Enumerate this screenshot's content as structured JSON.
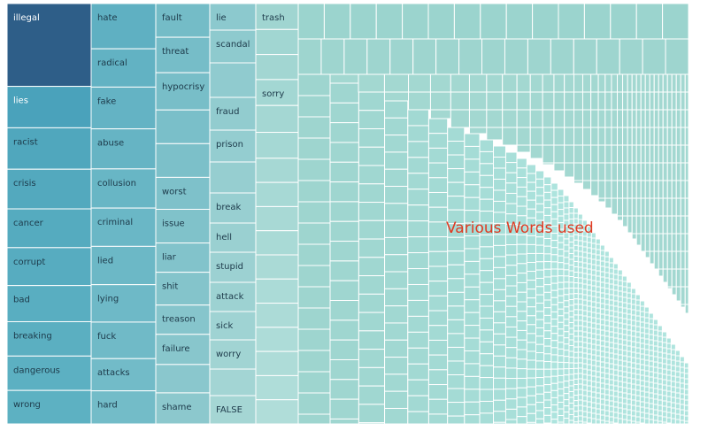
{
  "chart_data": {
    "type": "treemap",
    "title": "",
    "annotation": "Various Words used",
    "columns": [
      {
        "words": [
          {
            "label": "illegal",
            "value": 94,
            "color": "#2e5e88",
            "text": "#ffffff"
          },
          {
            "label": "lies",
            "value": 47,
            "color": "#4aa2bb",
            "text": "#ffffff"
          },
          {
            "label": "racist",
            "value": 47,
            "color": "#50a7bd"
          },
          {
            "label": "crisis",
            "value": 45,
            "color": "#53a9be"
          },
          {
            "label": "cancer",
            "value": 44,
            "color": "#55abbf"
          },
          {
            "label": "corrupt",
            "value": 43,
            "color": "#57acc0"
          },
          {
            "label": "bad",
            "value": 41,
            "color": "#59aec1"
          },
          {
            "label": "breaking",
            "value": 39,
            "color": "#5bafc1"
          },
          {
            "label": "dangerous",
            "value": 39,
            "color": "#5cb0c2"
          },
          {
            "label": "wrong",
            "value": 38,
            "color": "#5db1c2"
          }
        ]
      },
      {
        "words": [
          {
            "label": "hate",
            "value": 52,
            "color": "#5fb0c2"
          },
          {
            "label": "radical",
            "value": 44,
            "color": "#62b2c3"
          },
          {
            "label": "fake",
            "value": 48,
            "color": "#64b3c4"
          },
          {
            "label": "abuse",
            "value": 46,
            "color": "#66b4c4"
          },
          {
            "label": "collusion",
            "value": 45,
            "color": "#68b6c5"
          },
          {
            "label": "criminal",
            "value": 44,
            "color": "#6ab7c6"
          },
          {
            "label": "lied",
            "value": 44,
            "color": "#6cb8c6"
          },
          {
            "label": "lying",
            "value": 43,
            "color": "#6eb9c7"
          },
          {
            "label": "fuck",
            "value": 42,
            "color": "#70bac7"
          },
          {
            "label": "attacks",
            "value": 37,
            "color": "#72bbc8"
          },
          {
            "label": "hard",
            "value": 38,
            "color": "#73bcc8"
          }
        ]
      },
      {
        "words": [
          {
            "label": "fault",
            "value": 38,
            "color": "#74bcc7"
          },
          {
            "label": "threat",
            "value": 40,
            "color": "#76bdc8"
          },
          {
            "label": "hypocrisy",
            "value": 42,
            "color": "#78bec8"
          },
          {
            "label": "",
            "value": 38,
            "color": "#7abfc9"
          },
          {
            "label": "",
            "value": 38,
            "color": "#7cc0c9"
          },
          {
            "label": "worst",
            "value": 36,
            "color": "#7ec1ca"
          },
          {
            "label": "issue",
            "value": 38,
            "color": "#80c2ca"
          },
          {
            "label": "liar",
            "value": 33,
            "color": "#82c3cb"
          },
          {
            "label": "shit",
            "value": 37,
            "color": "#84c4cb"
          },
          {
            "label": "treason",
            "value": 33,
            "color": "#86c5cc"
          },
          {
            "label": "failure",
            "value": 34,
            "color": "#88c6cc"
          },
          {
            "label": "",
            "value": 32,
            "color": "#8ac7cd"
          },
          {
            "label": "shame",
            "value": 35,
            "color": "#8cc8cd"
          }
        ]
      },
      {
        "words": [
          {
            "label": "lie",
            "value": 30,
            "color": "#8cc9ce"
          },
          {
            "label": "scandal",
            "value": 37,
            "color": "#8ecace"
          },
          {
            "label": "",
            "value": 39,
            "color": "#90cbcf"
          },
          {
            "label": "fraud",
            "value": 37,
            "color": "#92cccf"
          },
          {
            "label": "prison",
            "value": 36,
            "color": "#94cdd0"
          },
          {
            "label": "",
            "value": 35,
            "color": "#96ced0"
          },
          {
            "label": "break",
            "value": 34,
            "color": "#98cfd1"
          },
          {
            "label": "hell",
            "value": 33,
            "color": "#9ad0d1"
          },
          {
            "label": "stupid",
            "value": 34,
            "color": "#9cd1d2"
          },
          {
            "label": "attack",
            "value": 33,
            "color": "#9dd2d2"
          },
          {
            "label": "sick",
            "value": 32,
            "color": "#9fd3d3"
          },
          {
            "label": "worry",
            "value": 33,
            "color": "#a1d4d3"
          },
          {
            "label": "",
            "value": 30,
            "color": "#a3d5d4"
          },
          {
            "label": "FALSE",
            "value": 32,
            "color": "#a5d6d4"
          }
        ]
      },
      {
        "words": [
          {
            "label": "trash",
            "value": 29,
            "color": "#a0d5d1"
          },
          {
            "label": "",
            "value": 28,
            "color": "#a1d6d2"
          },
          {
            "label": "",
            "value": 28,
            "color": "#a2d6d2"
          },
          {
            "label": "sorry",
            "value": 29,
            "color": "#a3d7d3"
          },
          {
            "label": "",
            "value": 30,
            "color": "#a4d7d3"
          },
          {
            "label": "",
            "value": 29,
            "color": "#a5d8d4"
          },
          {
            "label": "",
            "value": 27,
            "color": "#a6d8d4"
          },
          {
            "label": "",
            "value": 27,
            "color": "#a7d9d5"
          },
          {
            "label": "",
            "value": 27,
            "color": "#a8d9d5"
          },
          {
            "label": "",
            "value": 27,
            "color": "#a9dad6"
          },
          {
            "label": "",
            "value": 27,
            "color": "#aadad6"
          },
          {
            "label": "",
            "value": 27,
            "color": "#abdbd7"
          },
          {
            "label": "",
            "value": 27,
            "color": "#acdbd7"
          },
          {
            "label": "",
            "value": 27,
            "color": "#addcd8"
          },
          {
            "label": "",
            "value": 27,
            "color": "#aedcd8"
          },
          {
            "label": "",
            "value": 27,
            "color": "#afddd9"
          },
          {
            "label": "",
            "value": 27,
            "color": "#b0ddd9"
          }
        ]
      }
    ]
  }
}
